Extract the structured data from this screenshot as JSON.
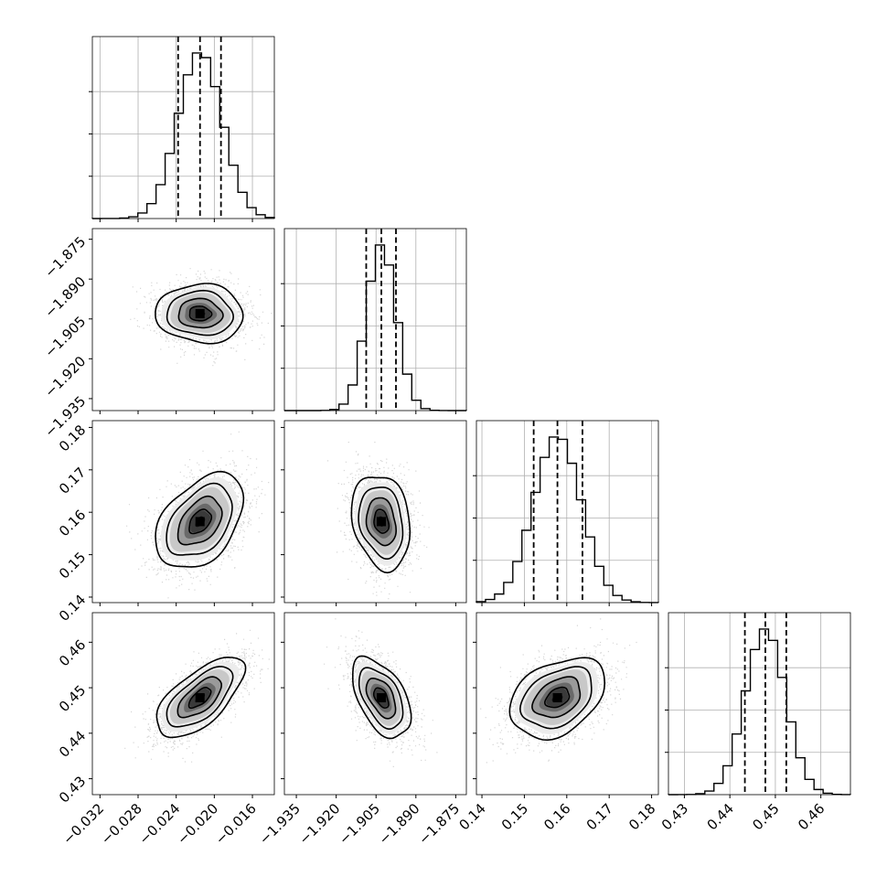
{
  "chart_data": {
    "type": "corner",
    "parameters": [
      {
        "ticks": [
          -0.032,
          -0.028,
          -0.024,
          -0.02,
          -0.016
        ],
        "tick_labels": [
          "−0.032",
          "−0.028",
          "−0.024",
          "−0.020",
          "−0.016"
        ],
        "range": [
          -0.0328,
          -0.0137
        ],
        "mean": -0.0215,
        "sd": 0.0023,
        "quantiles": [
          -0.0238,
          -0.0215,
          -0.0193
        ]
      },
      {
        "ticks": [
          -1.935,
          -1.92,
          -1.905,
          -1.89,
          -1.875
        ],
        "tick_labels": [
          "−1.935",
          "−1.920",
          "−1.905",
          "−1.890",
          "−1.875"
        ],
        "range": [
          -1.9395,
          -1.871
        ],
        "mean": -1.903,
        "sd": 0.0055,
        "quantiles": [
          -1.9087,
          -1.903,
          -1.8975
        ]
      },
      {
        "ticks": [
          0.14,
          0.15,
          0.16,
          0.17,
          0.18
        ],
        "tick_labels": [
          "0.14",
          "0.15",
          "0.16",
          "0.17",
          "0.18"
        ],
        "range": [
          0.1387,
          0.1816
        ],
        "mean": 0.1578,
        "sd": 0.0056,
        "quantiles": [
          0.1522,
          0.1578,
          0.1637
        ]
      },
      {
        "ticks": [
          0.43,
          0.44,
          0.45,
          0.46
        ],
        "tick_labels": [
          "0.43",
          "0.44",
          "0.45",
          "0.46"
        ],
        "range": [
          0.4265,
          0.4665
        ],
        "mean": 0.4478,
        "sd": 0.0044,
        "quantiles": [
          0.4433,
          0.4478,
          0.4524
        ]
      }
    ],
    "correlations": {
      "1-0": -0.05,
      "2-0": 0.42,
      "2-1": -0.2,
      "3-0": 0.65,
      "3-1": -0.5,
      "3-2": 0.35
    },
    "histogram_bins": 20,
    "contour_levels": [
      0.5,
      1.0,
      1.5,
      2.0
    ],
    "grid": true,
    "colors": {
      "samples": "#b4b4b4",
      "density": "#000000",
      "lines": "#000000"
    }
  }
}
